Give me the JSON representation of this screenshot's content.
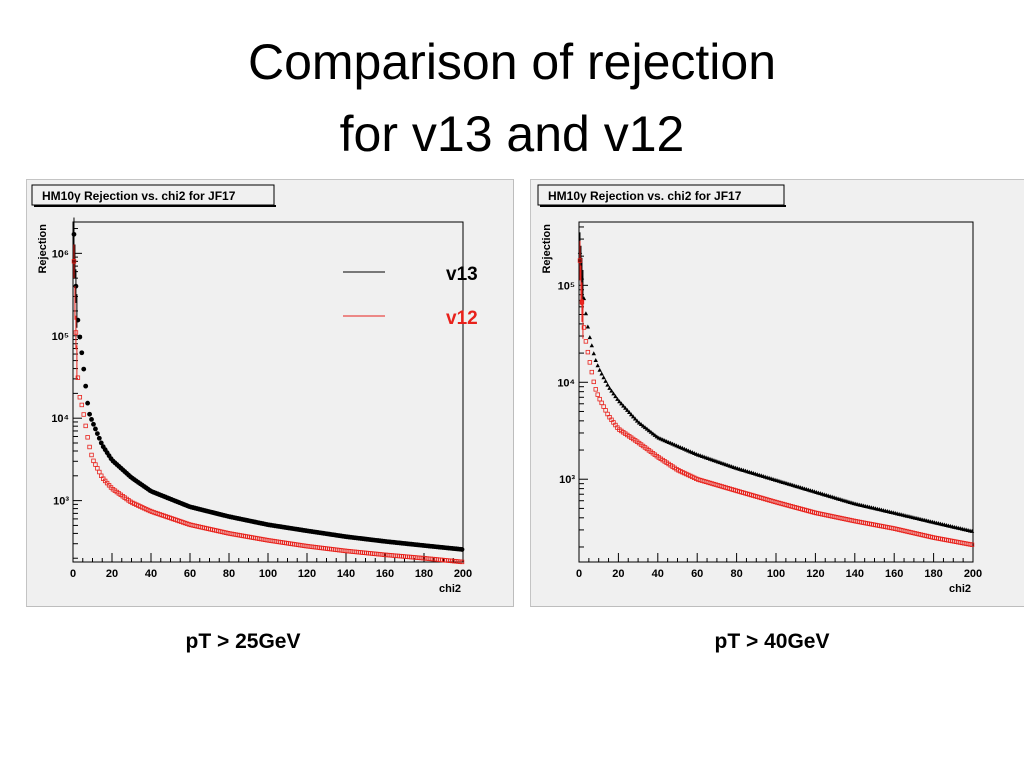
{
  "slide": {
    "title_line1": "Comparison of rejection",
    "title_line2": "for v13 and v12"
  },
  "colors": {
    "v13": "#000000",
    "v12": "#e8211b",
    "frame_bg": "#f0f0f0"
  },
  "chart_data": [
    {
      "type": "scatter",
      "title": "HM10γ Rejection vs. chi2 for JF17",
      "xlabel": "chi2",
      "ylabel": "Rejection",
      "x_ticks": [
        0,
        20,
        40,
        60,
        80,
        100,
        120,
        140,
        160,
        180,
        200
      ],
      "y_ticks": [
        1000,
        10000,
        100000,
        1000000
      ],
      "y_tick_labels": [
        "10³",
        "10⁴",
        "10⁵",
        "10⁶"
      ],
      "xlim": [
        0,
        200
      ],
      "ylim": [
        180,
        2400000
      ],
      "y_scale": "log",
      "grid": false,
      "caption": "pT > 25GeV",
      "legend": {
        "placement": "top-right",
        "entries": [
          "v13",
          "v12"
        ]
      },
      "series": [
        {
          "name": "v13",
          "marker": "filled-circle",
          "x": [
            0.5,
            1,
            2,
            3,
            5,
            8,
            10,
            15,
            20,
            30,
            40,
            60,
            80,
            100,
            120,
            140,
            160,
            180,
            200
          ],
          "y": [
            1700000,
            800000,
            200000,
            120000,
            50000,
            12000,
            9000,
            4700,
            3100,
            1900,
            1300,
            840,
            640,
            510,
            430,
            365,
            320,
            285,
            255
          ]
        },
        {
          "name": "v12",
          "marker": "open-square",
          "x": [
            0.5,
            1,
            2,
            3,
            5,
            8,
            10,
            15,
            20,
            30,
            40,
            60,
            80,
            100,
            120,
            140,
            160,
            180,
            200
          ],
          "y": [
            800000,
            250000,
            48000,
            20000,
            13000,
            5000,
            3200,
            1900,
            1400,
            950,
            740,
            510,
            400,
            330,
            280,
            245,
            220,
            200,
            180
          ]
        }
      ]
    },
    {
      "type": "scatter",
      "title": "HM10γ Rejection vs. chi2 for JF17",
      "xlabel": "chi2",
      "ylabel": "Rejection",
      "x_ticks": [
        0,
        20,
        40,
        60,
        80,
        100,
        120,
        140,
        160,
        180,
        200
      ],
      "y_ticks": [
        1000,
        10000,
        100000
      ],
      "y_tick_labels": [
        "10³",
        "10⁴",
        "10⁵"
      ],
      "xlim": [
        0,
        200
      ],
      "ylim": [
        140,
        450000
      ],
      "y_scale": "log",
      "grid": false,
      "caption": "pT > 40GeV",
      "series": [
        {
          "name": "v13",
          "marker": "filled-triangle",
          "x": [
            0.5,
            1,
            2,
            3,
            5,
            8,
            10,
            15,
            20,
            30,
            40,
            50,
            60,
            80,
            100,
            120,
            140,
            160,
            180,
            200
          ],
          "y": [
            220000,
            160000,
            90000,
            60000,
            32000,
            18000,
            14000,
            9000,
            6500,
            3900,
            2700,
            2200,
            1800,
            1300,
            980,
            740,
            560,
            450,
            360,
            290
          ]
        },
        {
          "name": "v12",
          "marker": "open-square",
          "x": [
            0.5,
            1,
            2,
            3,
            5,
            8,
            10,
            15,
            20,
            30,
            40,
            50,
            60,
            80,
            100,
            120,
            140,
            160,
            180,
            200
          ],
          "y": [
            180000,
            100000,
            45000,
            30000,
            18000,
            9000,
            7000,
            4500,
            3300,
            2400,
            1700,
            1250,
            1000,
            760,
            580,
            450,
            370,
            310,
            250,
            210
          ]
        }
      ]
    }
  ]
}
